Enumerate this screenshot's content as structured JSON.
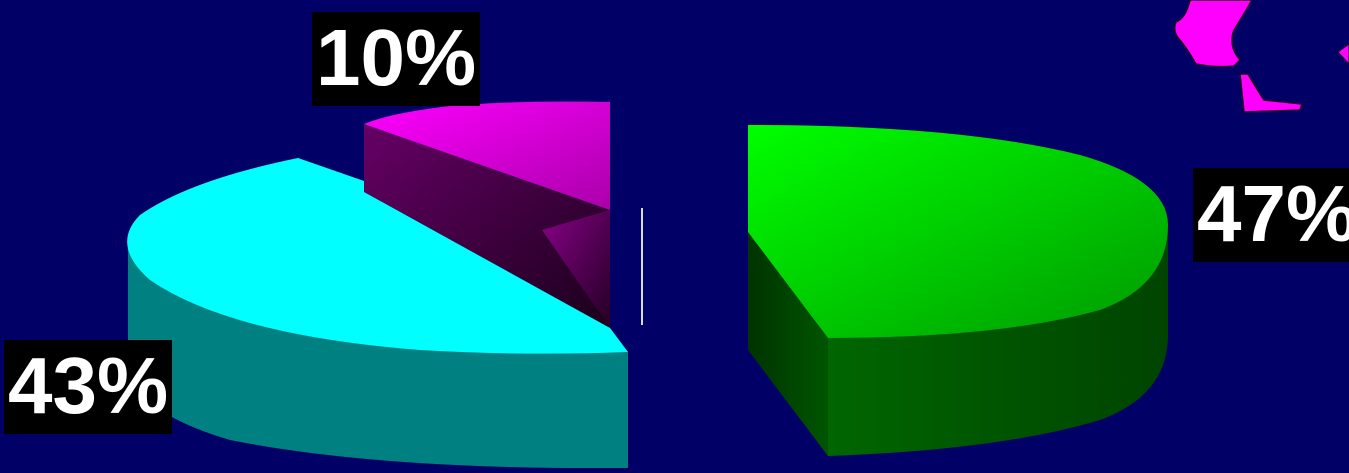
{
  "chart_data": {
    "type": "pie",
    "style": "3d-exploded",
    "slices": [
      {
        "label": "47%",
        "value": 47,
        "color": "#00ff00",
        "side_color": "#006600"
      },
      {
        "label": "43%",
        "value": 43,
        "color": "#00ffff",
        "side_color": "#008080"
      },
      {
        "label": "10%",
        "value": 10,
        "color": "#ff00ff",
        "side_color": "#660066"
      }
    ],
    "background_color": "#000066",
    "label_background": "#000000",
    "label_color": "#ffffff"
  },
  "decoration": {
    "icon": "magenta-map-fragment-icon",
    "color": "#ff00ff"
  }
}
